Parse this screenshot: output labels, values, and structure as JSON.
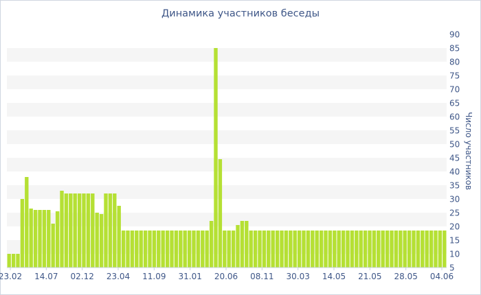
{
  "chart_data": {
    "type": "bar",
    "title": "Динамика участников беседы",
    "ylabel": "Число участников",
    "xlabel": "",
    "ylim": [
      5,
      90
    ],
    "yticks": [
      5,
      10,
      15,
      20,
      25,
      30,
      35,
      40,
      45,
      50,
      55,
      60,
      65,
      70,
      75,
      80,
      85,
      90
    ],
    "xtick_labels": [
      "23.02",
      "14.07",
      "02.12",
      "23.04",
      "11.09",
      "31.01",
      "20.06",
      "08.11",
      "30.03",
      "14.05",
      "21.05",
      "28.05",
      "04.06"
    ],
    "grid": "horizontal bands",
    "bar_color": "#b5e034",
    "values": [
      10,
      10,
      10,
      30,
      38,
      26.5,
      26,
      26,
      26,
      26,
      21,
      25.5,
      33,
      32,
      32,
      32,
      32,
      32,
      32,
      32,
      25,
      24.5,
      32,
      32,
      32,
      27.5,
      18.5,
      18.5,
      18.5,
      18.5,
      18.5,
      18.5,
      18.5,
      18.5,
      18.5,
      18.5,
      18.5,
      18.5,
      18.5,
      18.5,
      18.5,
      18.5,
      18.5,
      18.5,
      18.5,
      18.5,
      22,
      85,
      44.5,
      18.5,
      18.5,
      18.5,
      20.5,
      22,
      22,
      18.5,
      18.5,
      18.5,
      18.5,
      18.5,
      18.5,
      18.5,
      18.5,
      18.5,
      18.5,
      18.5,
      18.5,
      18.5,
      18.5,
      18.5,
      18.5,
      18.5,
      18.5,
      18.5,
      18.5,
      18.5,
      18.5,
      18.5,
      18.5,
      18.5,
      18.5,
      18.5,
      18.5,
      18.5,
      18.5,
      18.5,
      18.5,
      18.5,
      18.5,
      18.5,
      18.5,
      18.5,
      18.5,
      18.5,
      18.5,
      18.5,
      18.5,
      18.5,
      18.5,
      18.5
    ]
  }
}
